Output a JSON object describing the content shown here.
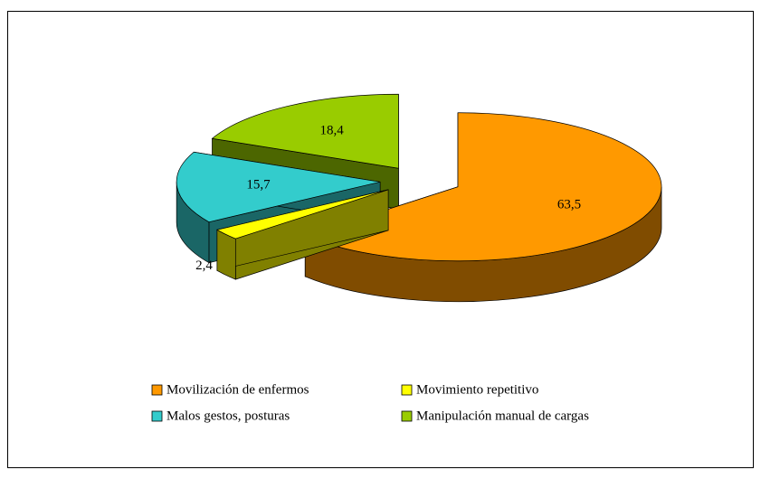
{
  "chart_data": {
    "type": "pie3d",
    "categories": [
      "Movilización de enfermos",
      "Movimiento repetitivo",
      "Malos gestos, posturas",
      "Manipulación manual de cargas"
    ],
    "values": [
      63.5,
      2.4,
      15.7,
      18.4
    ],
    "value_labels": [
      "63,5",
      "2,4",
      "15,7",
      "18,4"
    ],
    "colors": [
      "#FF9900",
      "#FFFF00",
      "#33CCCC",
      "#99CC00"
    ],
    "side_colors": [
      "#804C00",
      "#808000",
      "#1A6666",
      "#4C6600"
    ],
    "legend": "bottom"
  }
}
